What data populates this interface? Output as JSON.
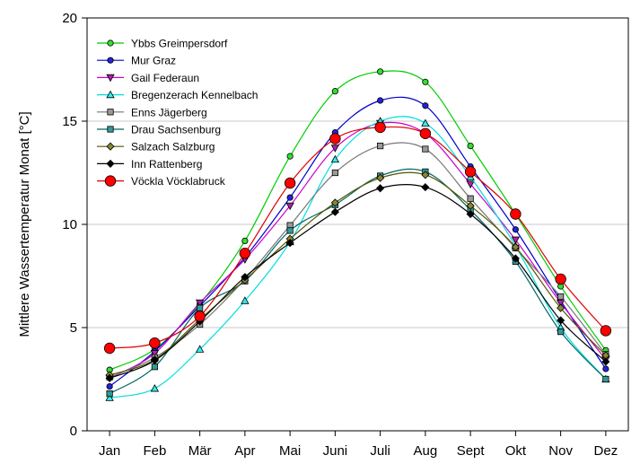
{
  "chart_data": {
    "type": "line",
    "title": "",
    "xlabel": "",
    "ylabel": "Mittlere Wassertemperatur Monat [°C]",
    "categories": [
      "Jan",
      "Feb",
      "Mär",
      "Apr",
      "Mai",
      "Juni",
      "Juli",
      "Aug",
      "Sept",
      "Okt",
      "Nov",
      "Dez"
    ],
    "ylim": [
      0,
      20
    ],
    "yticks": [
      "0",
      "5",
      "10",
      "15",
      "20"
    ],
    "grid": "horizontal",
    "legend_position": "top-left",
    "series": [
      {
        "name": "Ybbs Greimpersdorf",
        "color": "#00cc00",
        "fill": "#33dd33",
        "marker": "circle",
        "values": [
          2.95,
          3.95,
          6.15,
          9.2,
          13.3,
          16.45,
          17.4,
          16.9,
          13.8,
          10.5,
          7.0,
          3.9
        ]
      },
      {
        "name": "Mur Graz",
        "color": "#0000cc",
        "fill": "#2222dd",
        "marker": "circle",
        "values": [
          2.15,
          3.85,
          6.05,
          8.4,
          11.3,
          14.45,
          16.0,
          15.75,
          12.8,
          9.75,
          6.3,
          3.0
        ]
      },
      {
        "name": "Gail Federaun",
        "color": "#cc00cc",
        "fill": "#aa22aa",
        "marker": "triangle-down",
        "values": [
          2.55,
          3.75,
          6.2,
          8.3,
          10.9,
          13.7,
          14.9,
          14.4,
          11.95,
          9.25,
          6.2,
          3.45
        ]
      },
      {
        "name": "Bregenzerach Kennelbach",
        "color": "#00dddd",
        "fill": "#33eeee",
        "marker": "triangle-up",
        "values": [
          1.6,
          2.05,
          3.95,
          6.3,
          9.15,
          13.15,
          15.0,
          14.9,
          12.3,
          8.95,
          5.0,
          2.5
        ]
      },
      {
        "name": "Enns Jägerberg",
        "color": "#777777",
        "fill": "#999999",
        "marker": "square",
        "values": [
          2.6,
          3.55,
          5.15,
          7.35,
          9.95,
          12.5,
          13.8,
          13.65,
          11.25,
          8.85,
          6.5,
          3.7
        ]
      },
      {
        "name": "Drau Sachsenburg",
        "color": "#006666",
        "fill": "#339999",
        "marker": "square",
        "values": [
          1.8,
          3.1,
          5.95,
          7.25,
          9.7,
          10.95,
          12.35,
          12.55,
          10.7,
          8.2,
          4.8,
          2.5
        ]
      },
      {
        "name": "Salzach Salzburg",
        "color": "#555500",
        "fill": "#888833",
        "marker": "diamond",
        "values": [
          2.7,
          3.45,
          5.4,
          7.3,
          9.3,
          11.05,
          12.25,
          12.4,
          10.9,
          8.9,
          5.95,
          3.65
        ]
      },
      {
        "name": "Inn Rattenberg",
        "color": "#000000",
        "fill": "#000000",
        "marker": "diamond",
        "values": [
          2.55,
          3.4,
          5.3,
          7.45,
          9.1,
          10.6,
          11.75,
          11.8,
          10.5,
          8.35,
          5.35,
          3.35
        ]
      },
      {
        "name": "Vöckla Vöcklabruck",
        "color": "#dd0000",
        "fill": "#ff0000",
        "marker": "circle-large",
        "values": [
          4.0,
          4.25,
          5.55,
          8.6,
          12.0,
          14.15,
          14.7,
          14.4,
          12.55,
          10.5,
          7.35,
          4.85
        ]
      }
    ]
  }
}
